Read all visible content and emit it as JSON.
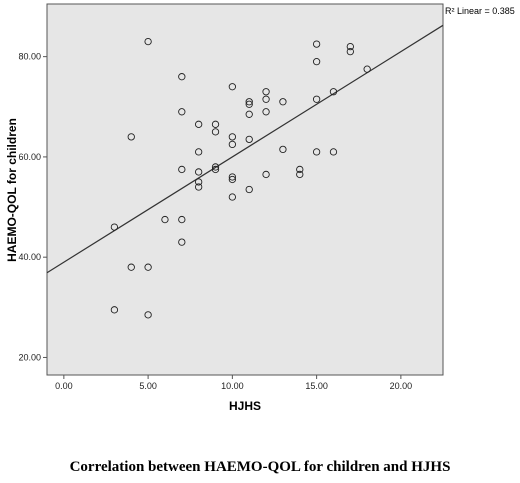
{
  "chart_data": {
    "type": "scatter",
    "xlabel": "HJHS",
    "ylabel": "HAEMO-QOL for children",
    "xlim": [
      -1,
      22.5
    ],
    "ylim": [
      16.5,
      90.5
    ],
    "x_ticks": [
      "0.00",
      "5.00",
      "10.00",
      "15.00",
      "20.00"
    ],
    "y_ticks": [
      "20.00",
      "40.00",
      "60.00",
      "80.00"
    ],
    "fit_line": {
      "label": "R² Linear = 0.385",
      "intercept": 39.0,
      "slope": 2.1
    },
    "plot_bg": "#e6e6e6",
    "points": [
      {
        "x": 3,
        "y": 29.5
      },
      {
        "x": 3,
        "y": 46
      },
      {
        "x": 4,
        "y": 38
      },
      {
        "x": 4,
        "y": 64
      },
      {
        "x": 5,
        "y": 38
      },
      {
        "x": 5,
        "y": 28.5
      },
      {
        "x": 5,
        "y": 83
      },
      {
        "x": 6,
        "y": 47.5
      },
      {
        "x": 7,
        "y": 43
      },
      {
        "x": 7,
        "y": 47.5
      },
      {
        "x": 7,
        "y": 57.5
      },
      {
        "x": 7,
        "y": 69
      },
      {
        "x": 7,
        "y": 76
      },
      {
        "x": 8,
        "y": 55
      },
      {
        "x": 8,
        "y": 54
      },
      {
        "x": 8,
        "y": 57
      },
      {
        "x": 8,
        "y": 61
      },
      {
        "x": 8,
        "y": 66.5
      },
      {
        "x": 9,
        "y": 57.5
      },
      {
        "x": 9,
        "y": 58
      },
      {
        "x": 9,
        "y": 65
      },
      {
        "x": 9,
        "y": 66.5
      },
      {
        "x": 10,
        "y": 52
      },
      {
        "x": 10,
        "y": 55.5
      },
      {
        "x": 10,
        "y": 56
      },
      {
        "x": 10,
        "y": 62.5
      },
      {
        "x": 10,
        "y": 64
      },
      {
        "x": 10,
        "y": 74
      },
      {
        "x": 11,
        "y": 53.5
      },
      {
        "x": 11,
        "y": 63.5
      },
      {
        "x": 11,
        "y": 68.5
      },
      {
        "x": 11,
        "y": 70.5
      },
      {
        "x": 11,
        "y": 71
      },
      {
        "x": 12,
        "y": 56.5
      },
      {
        "x": 12,
        "y": 69
      },
      {
        "x": 12,
        "y": 71.5
      },
      {
        "x": 12,
        "y": 73
      },
      {
        "x": 13,
        "y": 61.5
      },
      {
        "x": 13,
        "y": 71
      },
      {
        "x": 14,
        "y": 56.5
      },
      {
        "x": 14,
        "y": 57.5
      },
      {
        "x": 15,
        "y": 61
      },
      {
        "x": 15,
        "y": 71.5
      },
      {
        "x": 15,
        "y": 79
      },
      {
        "x": 15,
        "y": 82.5
      },
      {
        "x": 16,
        "y": 61
      },
      {
        "x": 16,
        "y": 73
      },
      {
        "x": 17,
        "y": 81
      },
      {
        "x": 17,
        "y": 82
      },
      {
        "x": 18,
        "y": 77.5
      }
    ]
  },
  "caption": "Correlation between HAEMO-QOL for children and HJHS"
}
